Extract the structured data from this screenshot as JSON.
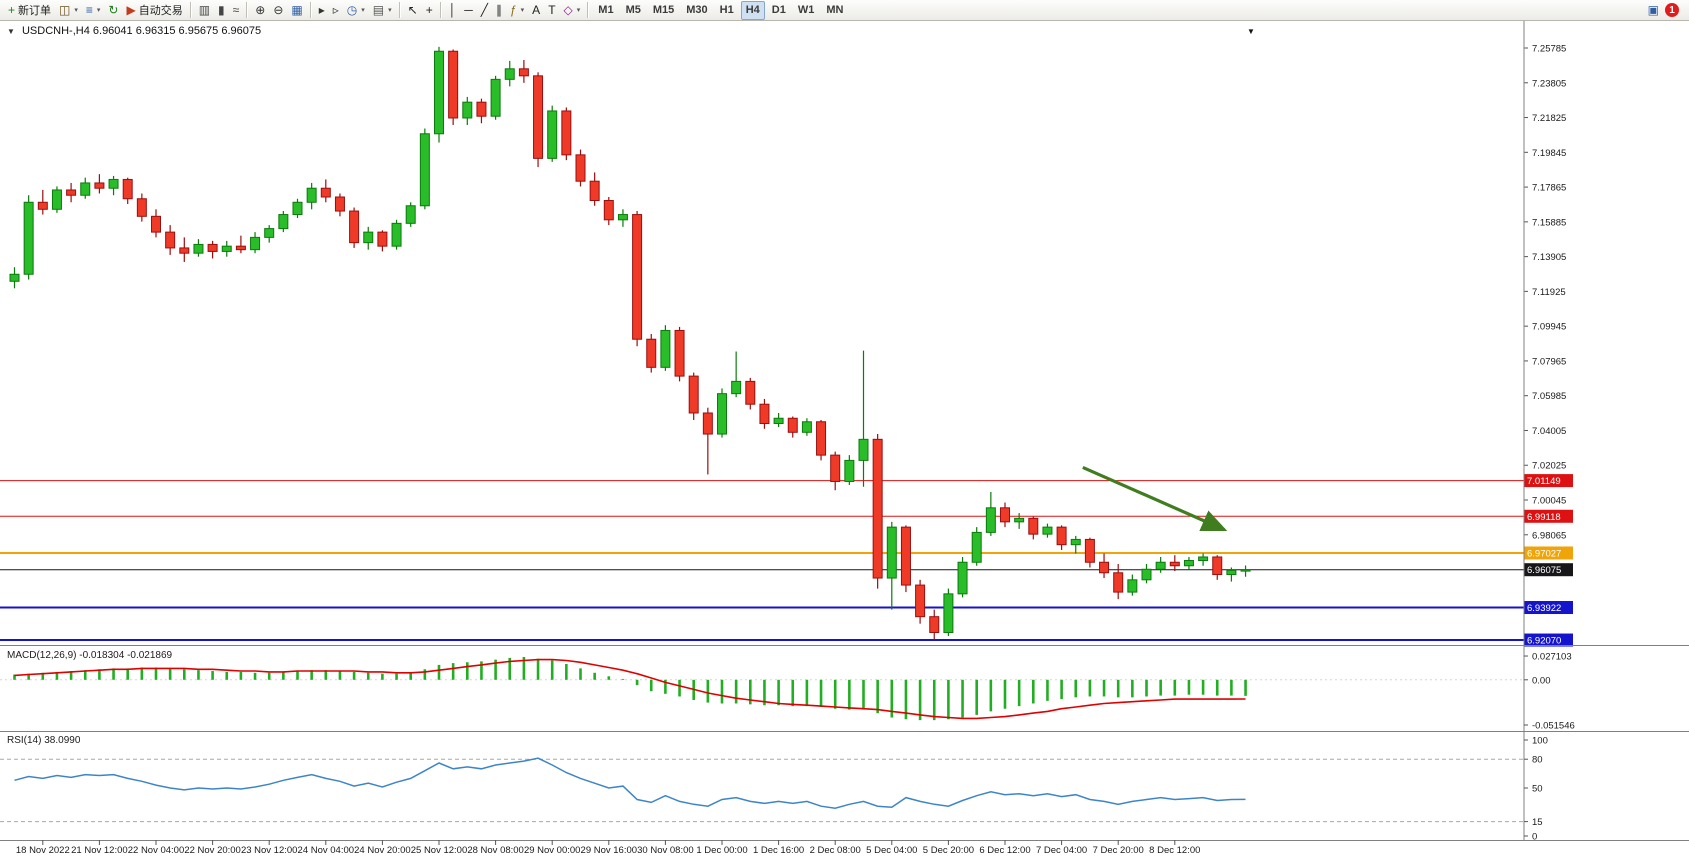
{
  "toolbar": {
    "caret_glyph": "▾",
    "items": [
      {
        "type": "btn",
        "name": "new-order-button",
        "glyph": "+",
        "glyph_color": "#18871b",
        "label": "新订单"
      },
      {
        "type": "btn",
        "name": "new-chart-button",
        "glyph": "◫",
        "glyph_color": "#6b4f1d",
        "caret": true
      },
      {
        "type": "btn",
        "name": "profiles-button",
        "glyph": "≡",
        "glyph_color": "#2f5fa3",
        "caret": true
      },
      {
        "type": "btn",
        "name": "refresh-button",
        "glyph": "↻",
        "glyph_color": "#1d7a1d"
      },
      {
        "type": "btn",
        "name": "auto-trading-button",
        "glyph": "▶",
        "glyph_color": "#c43a1a",
        "label": "自动交易"
      },
      {
        "type": "sep"
      },
      {
        "type": "btn",
        "name": "bar-chart-button",
        "glyph": "▥",
        "glyph_color": "#444"
      },
      {
        "type": "btn",
        "name": "candlestick-chart-button",
        "glyph": "▮",
        "glyph_color": "#444"
      },
      {
        "type": "btn",
        "name": "line-chart-button",
        "glyph": "≈",
        "glyph_color": "#444"
      },
      {
        "type": "sep"
      },
      {
        "type": "btn",
        "name": "zoom-in-button",
        "glyph": "⊕",
        "glyph_color": "#333"
      },
      {
        "type": "btn",
        "name": "zoom-out-button",
        "glyph": "⊖",
        "glyph_color": "#333"
      },
      {
        "type": "btn",
        "name": "tile-windows-button",
        "glyph": "▦",
        "glyph_color": "#2f5fa3"
      },
      {
        "type": "sep"
      },
      {
        "type": "btn",
        "name": "auto-scroll-button",
        "glyph": "▸",
        "glyph_color": "#333"
      },
      {
        "type": "btn",
        "name": "chart-shift-button",
        "glyph": "▹",
        "glyph_color": "#333"
      },
      {
        "type": "btn",
        "name": "clock-button",
        "glyph": "◷",
        "glyph_color": "#2f5fa3",
        "caret": true
      },
      {
        "type": "btn",
        "name": "export-button",
        "glyph": "▤",
        "glyph_color": "#555",
        "caret": true
      },
      {
        "type": "sep"
      },
      {
        "type": "btn",
        "name": "cursor-button",
        "glyph": "↖",
        "glyph_color": "#222"
      },
      {
        "type": "btn",
        "name": "crosshair-button",
        "glyph": "+",
        "glyph_color": "#222"
      },
      {
        "type": "sep"
      },
      {
        "type": "btn",
        "name": "vertical-line-button",
        "glyph": "│",
        "glyph_color": "#222"
      },
      {
        "type": "btn",
        "name": "horizontal-line-button",
        "glyph": "─",
        "glyph_color": "#222"
      },
      {
        "type": "btn",
        "name": "trendline-button",
        "glyph": "╱",
        "glyph_color": "#222"
      },
      {
        "type": "btn",
        "name": "channel-button",
        "glyph": "∥",
        "glyph_color": "#222"
      },
      {
        "type": "btn",
        "name": "fibonacci-button",
        "glyph": "ƒ",
        "glyph_color": "#8a6d1d",
        "caret": true
      },
      {
        "type": "btn",
        "name": "text-button",
        "glyph": "A",
        "glyph_color": "#222"
      },
      {
        "type": "btn",
        "name": "text-label-button",
        "glyph": "T",
        "glyph_color": "#222"
      },
      {
        "type": "btn",
        "name": "arrows-button",
        "glyph": "◇",
        "glyph_color": "#8a1d8a",
        "caret": true
      },
      {
        "type": "sep"
      },
      {
        "type": "tf",
        "name": "tf-m1-button",
        "label": "M1"
      },
      {
        "type": "tf",
        "name": "tf-m5-button",
        "label": "M5"
      },
      {
        "type": "tf",
        "name": "tf-m15-button",
        "label": "M15"
      },
      {
        "type": "tf",
        "name": "tf-m30-button",
        "label": "M30"
      },
      {
        "type": "tf",
        "name": "tf-h1-button",
        "label": "H1"
      },
      {
        "type": "tf",
        "name": "tf-h4-button",
        "label": "H4",
        "active": true
      },
      {
        "type": "tf",
        "name": "tf-d1-button",
        "label": "D1"
      },
      {
        "type": "tf",
        "name": "tf-w1-button",
        "label": "W1"
      },
      {
        "type": "tf",
        "name": "tf-mn-button",
        "label": "MN"
      },
      {
        "type": "spacer"
      },
      {
        "type": "btn",
        "name": "community-button",
        "glyph": "▣",
        "glyph_color": "#2f5fa3"
      },
      {
        "type": "badge",
        "name": "notification-badge",
        "label": "1"
      }
    ]
  },
  "chart": {
    "dropdown_glyph": "▼"
  },
  "chart_data": {
    "type": "candlestick",
    "title": "USDCNH-,H4",
    "ohlc_text": "6.96041 6.96315 6.95675 6.96075",
    "current_ohlc": {
      "open": "6.96041",
      "high": "6.96315",
      "low": "6.95675",
      "close": "6.96075"
    },
    "shift_marker_glyph": "▼",
    "colors": {
      "up": "#29bd29",
      "up_border": "#0c7a0c",
      "down": "#ee3a27",
      "down_border": "#9a0f0f",
      "macd_bar": "#22ae22",
      "macd_signal": "#e00000",
      "rsi_line": "#3d85c8",
      "arrow": "#3f7d1e"
    },
    "price_axis_ticks": [
      "7.25785",
      "7.23805",
      "7.21825",
      "7.19845",
      "7.17865",
      "7.15885",
      "7.13905",
      "7.11925",
      "7.09945",
      "7.07965",
      "7.05985",
      "7.04005",
      "7.02025",
      "7.00045",
      "6.98065"
    ],
    "hlines": [
      {
        "name": "resistance-line-1",
        "price": 7.01149,
        "label": "7.01149",
        "color": "#dd1111",
        "width": 1
      },
      {
        "name": "resistance-line-2",
        "price": 6.99118,
        "label": "6.99118",
        "color": "#dd1111",
        "width": 1
      },
      {
        "name": "pivot-line",
        "price": 6.97027,
        "label": "6.97027",
        "color": "#efa40a",
        "width": 2
      },
      {
        "name": "current-price-line",
        "price": 6.96075,
        "label": "6.96075",
        "color": "#17171a",
        "width": 1
      },
      {
        "name": "support-line-1",
        "price": 6.93922,
        "label": "6.93922",
        "color": "#1414cc",
        "width": 2
      },
      {
        "name": "support-line-2",
        "price": 6.9207,
        "label": "6.92070",
        "color": "#1414cc",
        "width": 2
      }
    ],
    "arrow": {
      "from": {
        "index": 75.5,
        "price": 7.019
      },
      "to": {
        "index": 85.5,
        "price": 6.9835
      },
      "color": "#3f7d1e"
    },
    "candles": [
      [
        7.125,
        7.133,
        7.121,
        7.129
      ],
      [
        7.129,
        7.174,
        7.126,
        7.17
      ],
      [
        7.17,
        7.177,
        7.163,
        7.166
      ],
      [
        7.166,
        7.179,
        7.164,
        7.177
      ],
      [
        7.177,
        7.181,
        7.17,
        7.174
      ],
      [
        7.174,
        7.184,
        7.172,
        7.181
      ],
      [
        7.181,
        7.186,
        7.175,
        7.178
      ],
      [
        7.178,
        7.185,
        7.174,
        7.183
      ],
      [
        7.183,
        7.184,
        7.169,
        7.172
      ],
      [
        7.172,
        7.175,
        7.159,
        7.162
      ],
      [
        7.162,
        7.166,
        7.15,
        7.153
      ],
      [
        7.153,
        7.157,
        7.14,
        7.144
      ],
      [
        7.144,
        7.15,
        7.136,
        7.141
      ],
      [
        7.141,
        7.149,
        7.139,
        7.146
      ],
      [
        7.146,
        7.148,
        7.138,
        7.142
      ],
      [
        7.142,
        7.148,
        7.139,
        7.145
      ],
      [
        7.145,
        7.151,
        7.141,
        7.143
      ],
      [
        7.143,
        7.153,
        7.141,
        7.15
      ],
      [
        7.15,
        7.157,
        7.147,
        7.155
      ],
      [
        7.155,
        7.165,
        7.153,
        7.163
      ],
      [
        7.163,
        7.172,
        7.161,
        7.17
      ],
      [
        7.17,
        7.181,
        7.166,
        7.178
      ],
      [
        7.178,
        7.183,
        7.17,
        7.173
      ],
      [
        7.173,
        7.175,
        7.162,
        7.165
      ],
      [
        7.165,
        7.167,
        7.144,
        7.147
      ],
      [
        7.147,
        7.156,
        7.143,
        7.153
      ],
      [
        7.153,
        7.154,
        7.142,
        7.145
      ],
      [
        7.145,
        7.16,
        7.143,
        7.158
      ],
      [
        7.158,
        7.17,
        7.156,
        7.168
      ],
      [
        7.168,
        7.212,
        7.166,
        7.209
      ],
      [
        7.209,
        7.2585,
        7.204,
        7.256
      ],
      [
        7.256,
        7.257,
        7.214,
        7.218
      ],
      [
        7.218,
        7.23,
        7.214,
        7.227
      ],
      [
        7.227,
        7.229,
        7.215,
        7.219
      ],
      [
        7.219,
        7.242,
        7.217,
        7.24
      ],
      [
        7.24,
        7.2505,
        7.236,
        7.246
      ],
      [
        7.246,
        7.251,
        7.238,
        7.242
      ],
      [
        7.242,
        7.244,
        7.19,
        7.195
      ],
      [
        7.195,
        7.225,
        7.193,
        7.222
      ],
      [
        7.222,
        7.224,
        7.194,
        7.197
      ],
      [
        7.197,
        7.2,
        7.179,
        7.182
      ],
      [
        7.182,
        7.187,
        7.168,
        7.171
      ],
      [
        7.171,
        7.173,
        7.157,
        7.16
      ],
      [
        7.16,
        7.166,
        7.156,
        7.163
      ],
      [
        7.163,
        7.165,
        7.088,
        7.092
      ],
      [
        7.092,
        7.095,
        7.073,
        7.076
      ],
      [
        7.076,
        7.1,
        7.074,
        7.097
      ],
      [
        7.097,
        7.099,
        7.068,
        7.071
      ],
      [
        7.071,
        7.073,
        7.046,
        7.05
      ],
      [
        7.05,
        7.053,
        7.015,
        7.038
      ],
      [
        7.038,
        7.064,
        7.036,
        7.061
      ],
      [
        7.061,
        7.085,
        7.059,
        7.068
      ],
      [
        7.068,
        7.07,
        7.052,
        7.055
      ],
      [
        7.055,
        7.058,
        7.041,
        7.044
      ],
      [
        7.044,
        7.05,
        7.042,
        7.047
      ],
      [
        7.047,
        7.048,
        7.036,
        7.039
      ],
      [
        7.039,
        7.047,
        7.037,
        7.045
      ],
      [
        7.045,
        7.046,
        7.023,
        7.026
      ],
      [
        7.026,
        7.028,
        7.006,
        7.011
      ],
      [
        7.011,
        7.026,
        7.009,
        7.023
      ],
      [
        7.023,
        7.0855,
        7.008,
        7.035
      ],
      [
        7.035,
        7.038,
        6.95,
        6.956
      ],
      [
        6.956,
        6.988,
        6.938,
        6.985
      ],
      [
        6.985,
        6.986,
        6.948,
        6.952
      ],
      [
        6.952,
        6.955,
        6.93,
        6.934
      ],
      [
        6.934,
        6.938,
        6.921,
        6.925
      ],
      [
        6.925,
        6.95,
        6.923,
        6.947
      ],
      [
        6.947,
        6.968,
        6.945,
        6.965
      ],
      [
        6.965,
        6.985,
        6.963,
        6.982
      ],
      [
        6.982,
        7.005,
        6.98,
        6.996
      ],
      [
        6.996,
        6.999,
        6.985,
        6.988
      ],
      [
        6.988,
        6.993,
        6.984,
        6.99
      ],
      [
        6.99,
        6.991,
        6.978,
        6.981
      ],
      [
        6.981,
        6.987,
        6.979,
        6.985
      ],
      [
        6.985,
        6.986,
        6.972,
        6.975
      ],
      [
        6.975,
        6.98,
        6.97,
        6.978
      ],
      [
        6.978,
        6.979,
        6.962,
        6.965
      ],
      [
        6.965,
        6.97,
        6.956,
        6.959
      ],
      [
        6.959,
        6.964,
        6.944,
        6.948
      ],
      [
        6.948,
        6.958,
        6.946,
        6.955
      ],
      [
        6.955,
        6.964,
        6.953,
        6.961
      ],
      [
        6.961,
        6.968,
        6.959,
        6.965
      ],
      [
        6.965,
        6.969,
        6.96,
        6.963
      ],
      [
        6.963,
        6.968,
        6.961,
        6.966
      ],
      [
        6.966,
        6.97,
        6.963,
        6.968
      ],
      [
        6.968,
        6.969,
        6.955,
        6.958
      ],
      [
        6.958,
        6.962,
        6.954,
        6.9604
      ],
      [
        6.96041,
        6.96315,
        6.95675,
        6.96075
      ]
    ],
    "time_labels": [
      "18 Nov 2022",
      "21 Nov 12:00",
      "22 Nov 04:00",
      "22 Nov 20:00",
      "23 Nov 12:00",
      "24 Nov 04:00",
      "24 Nov 20:00",
      "25 Nov 12:00",
      "28 Nov 08:00",
      "29 Nov 00:00",
      "29 Nov 16:00",
      "30 Nov 08:00",
      "1 Dec 00:00",
      "1 Dec 16:00",
      "2 Dec 08:00",
      "5 Dec 04:00",
      "5 Dec 20:00",
      "6 Dec 12:00",
      "7 Dec 04:00",
      "7 Dec 20:00",
      "8 Dec 12:00"
    ],
    "macd": {
      "label": "MACD(12,26,9)",
      "values_text": "-0.018304 -0.021869",
      "axis": [
        "0.027103",
        "0.00",
        "-0.051546"
      ],
      "histogram": [
        0.006,
        0.007,
        0.008,
        0.009,
        0.01,
        0.011,
        0.012,
        0.013,
        0.013,
        0.014,
        0.014,
        0.013,
        0.012,
        0.011,
        0.01,
        0.009,
        0.009,
        0.008,
        0.008,
        0.009,
        0.01,
        0.011,
        0.011,
        0.01,
        0.009,
        0.008,
        0.007,
        0.007,
        0.008,
        0.012,
        0.017,
        0.019,
        0.02,
        0.021,
        0.023,
        0.025,
        0.026,
        0.024,
        0.022,
        0.018,
        0.013,
        0.008,
        0.004,
        0.001,
        -0.006,
        -0.013,
        -0.016,
        -0.019,
        -0.023,
        -0.026,
        -0.027,
        -0.027,
        -0.028,
        -0.029,
        -0.029,
        -0.03,
        -0.03,
        -0.031,
        -0.033,
        -0.034,
        -0.034,
        -0.038,
        -0.043,
        -0.045,
        -0.046,
        -0.046,
        -0.045,
        -0.043,
        -0.04,
        -0.036,
        -0.033,
        -0.03,
        -0.027,
        -0.024,
        -0.022,
        -0.02,
        -0.019,
        -0.019,
        -0.02,
        -0.02,
        -0.019,
        -0.018,
        -0.018,
        -0.017,
        -0.017,
        -0.018,
        -0.018,
        -0.0183
      ],
      "signal": [
        0.005,
        0.006,
        0.007,
        0.008,
        0.009,
        0.01,
        0.011,
        0.012,
        0.012,
        0.013,
        0.013,
        0.013,
        0.013,
        0.012,
        0.012,
        0.011,
        0.01,
        0.01,
        0.009,
        0.009,
        0.01,
        0.01,
        0.01,
        0.01,
        0.01,
        0.009,
        0.009,
        0.008,
        0.008,
        0.009,
        0.011,
        0.013,
        0.015,
        0.017,
        0.019,
        0.021,
        0.022,
        0.023,
        0.023,
        0.022,
        0.02,
        0.017,
        0.014,
        0.011,
        0.007,
        0.002,
        -0.003,
        -0.007,
        -0.011,
        -0.015,
        -0.018,
        -0.021,
        -0.023,
        -0.025,
        -0.027,
        -0.028,
        -0.029,
        -0.03,
        -0.031,
        -0.032,
        -0.033,
        -0.034,
        -0.036,
        -0.038,
        -0.04,
        -0.042,
        -0.043,
        -0.044,
        -0.044,
        -0.043,
        -0.042,
        -0.04,
        -0.038,
        -0.036,
        -0.033,
        -0.031,
        -0.029,
        -0.027,
        -0.026,
        -0.025,
        -0.024,
        -0.023,
        -0.022,
        -0.022,
        -0.022,
        -0.022,
        -0.022,
        -0.0219
      ]
    },
    "rsi": {
      "label": "RSI(14)",
      "value_text": "38.0990",
      "axis": [
        "100",
        "80",
        "50",
        "15",
        "0"
      ],
      "levels": [
        80,
        15
      ],
      "values": [
        58,
        62,
        60,
        63,
        61,
        64,
        63,
        64,
        60,
        57,
        53,
        50,
        48,
        50,
        49,
        50,
        49,
        51,
        54,
        58,
        61,
        64,
        60,
        57,
        52,
        55,
        51,
        56,
        60,
        68,
        76,
        70,
        72,
        70,
        74,
        76,
        78,
        81,
        74,
        66,
        60,
        55,
        50,
        52,
        38,
        35,
        42,
        36,
        33,
        31,
        38,
        40,
        36,
        34,
        36,
        34,
        36,
        31,
        29,
        33,
        36,
        31,
        30,
        40,
        36,
        33,
        31,
        37,
        42,
        46,
        43,
        44,
        42,
        44,
        41,
        43,
        38,
        36,
        33,
        36,
        38,
        40,
        38,
        39,
        40,
        37,
        38,
        38.1
      ]
    }
  }
}
